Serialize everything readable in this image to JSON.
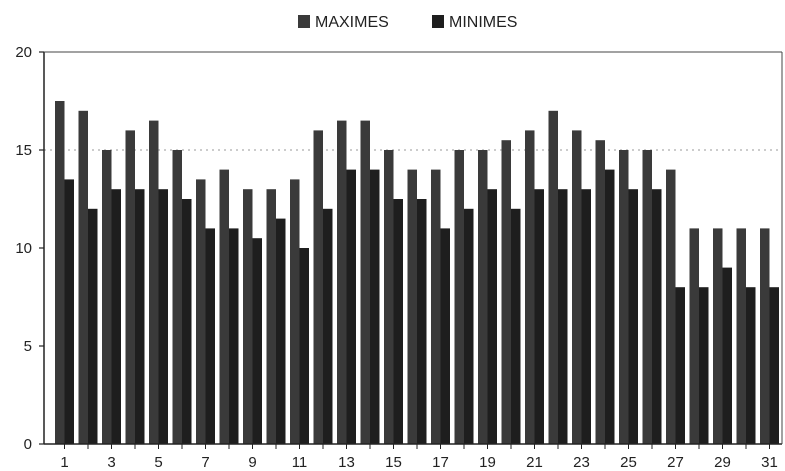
{
  "chart_data": {
    "type": "bar",
    "title": "",
    "xlabel": "",
    "ylabel": "",
    "ylim": [
      0,
      20
    ],
    "yticks": [
      0,
      5,
      10,
      15,
      20
    ],
    "x_tick_labels": [
      "1",
      "3",
      "5",
      "7",
      "9",
      "11",
      "13",
      "15",
      "17",
      "19",
      "21",
      "23",
      "25",
      "27",
      "29",
      "31"
    ],
    "categories": [
      "1",
      "2",
      "3",
      "4",
      "5",
      "6",
      "7",
      "8",
      "9",
      "10",
      "11",
      "12",
      "13",
      "14",
      "15",
      "16",
      "17",
      "18",
      "19",
      "20",
      "21",
      "22",
      "23",
      "24",
      "25",
      "26",
      "27",
      "28",
      "29",
      "30",
      "31"
    ],
    "grid": "dotted line at 15",
    "legend_position": "top-center",
    "series": [
      {
        "name": "MAXIMES",
        "color": "#3a3a3a",
        "values": [
          17.5,
          17.0,
          15.0,
          16.0,
          16.5,
          15.0,
          13.5,
          14.0,
          13.0,
          13.0,
          13.5,
          16.0,
          16.5,
          16.5,
          15.0,
          14.0,
          14.0,
          15.0,
          15.0,
          15.5,
          16.0,
          17.0,
          16.0,
          15.5,
          15.0,
          15.0,
          14.0,
          11.0,
          11.0,
          11.0,
          11.0
        ]
      },
      {
        "name": "MINIMES",
        "color": "#1e1e1e",
        "values": [
          13.5,
          12.0,
          13.0,
          13.0,
          13.0,
          12.5,
          11.0,
          11.0,
          10.5,
          11.5,
          10.0,
          12.0,
          14.0,
          14.0,
          12.5,
          12.5,
          11.0,
          12.0,
          13.0,
          12.0,
          13.0,
          13.0,
          13.0,
          14.0,
          13.0,
          13.0,
          8.0,
          8.0,
          9.0,
          8.0,
          8.0
        ]
      }
    ]
  }
}
